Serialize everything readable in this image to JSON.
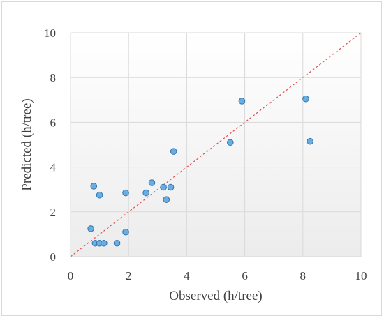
{
  "chart_data": {
    "type": "scatter",
    "title": "",
    "xlabel": "Observed (h/tree)",
    "ylabel": "Predicted (h/tree)",
    "xlim": [
      0,
      10
    ],
    "ylim": [
      0,
      10
    ],
    "xticks": [
      "0",
      "2",
      "4",
      "6",
      "8",
      "10"
    ],
    "yticks": [
      "0",
      "2",
      "4",
      "6",
      "8",
      "10"
    ],
    "grid": true,
    "legend": "none",
    "reference_line": {
      "type": "1:1",
      "style": "dashed",
      "color": "#e05050"
    },
    "colors": {
      "marker_fill": "#6aaee0",
      "marker_stroke": "#2e75b6",
      "plot_bg_top": "#ffffff",
      "plot_bg_bottom": "#ececec"
    },
    "series": [
      {
        "points": [
          {
            "x": 0.7,
            "y": 1.25
          },
          {
            "x": 0.8,
            "y": 3.15
          },
          {
            "x": 0.85,
            "y": 0.6
          },
          {
            "x": 1.0,
            "y": 0.6
          },
          {
            "x": 1.0,
            "y": 2.75
          },
          {
            "x": 1.15,
            "y": 0.6
          },
          {
            "x": 1.6,
            "y": 0.6
          },
          {
            "x": 1.9,
            "y": 1.1
          },
          {
            "x": 1.9,
            "y": 2.85
          },
          {
            "x": 2.6,
            "y": 2.85
          },
          {
            "x": 2.8,
            "y": 3.3
          },
          {
            "x": 3.2,
            "y": 3.1
          },
          {
            "x": 3.3,
            "y": 2.55
          },
          {
            "x": 3.45,
            "y": 3.1
          },
          {
            "x": 3.55,
            "y": 4.7
          },
          {
            "x": 5.5,
            "y": 5.1
          },
          {
            "x": 5.9,
            "y": 6.95
          },
          {
            "x": 8.1,
            "y": 7.05
          },
          {
            "x": 8.25,
            "y": 5.15
          }
        ]
      }
    ]
  }
}
